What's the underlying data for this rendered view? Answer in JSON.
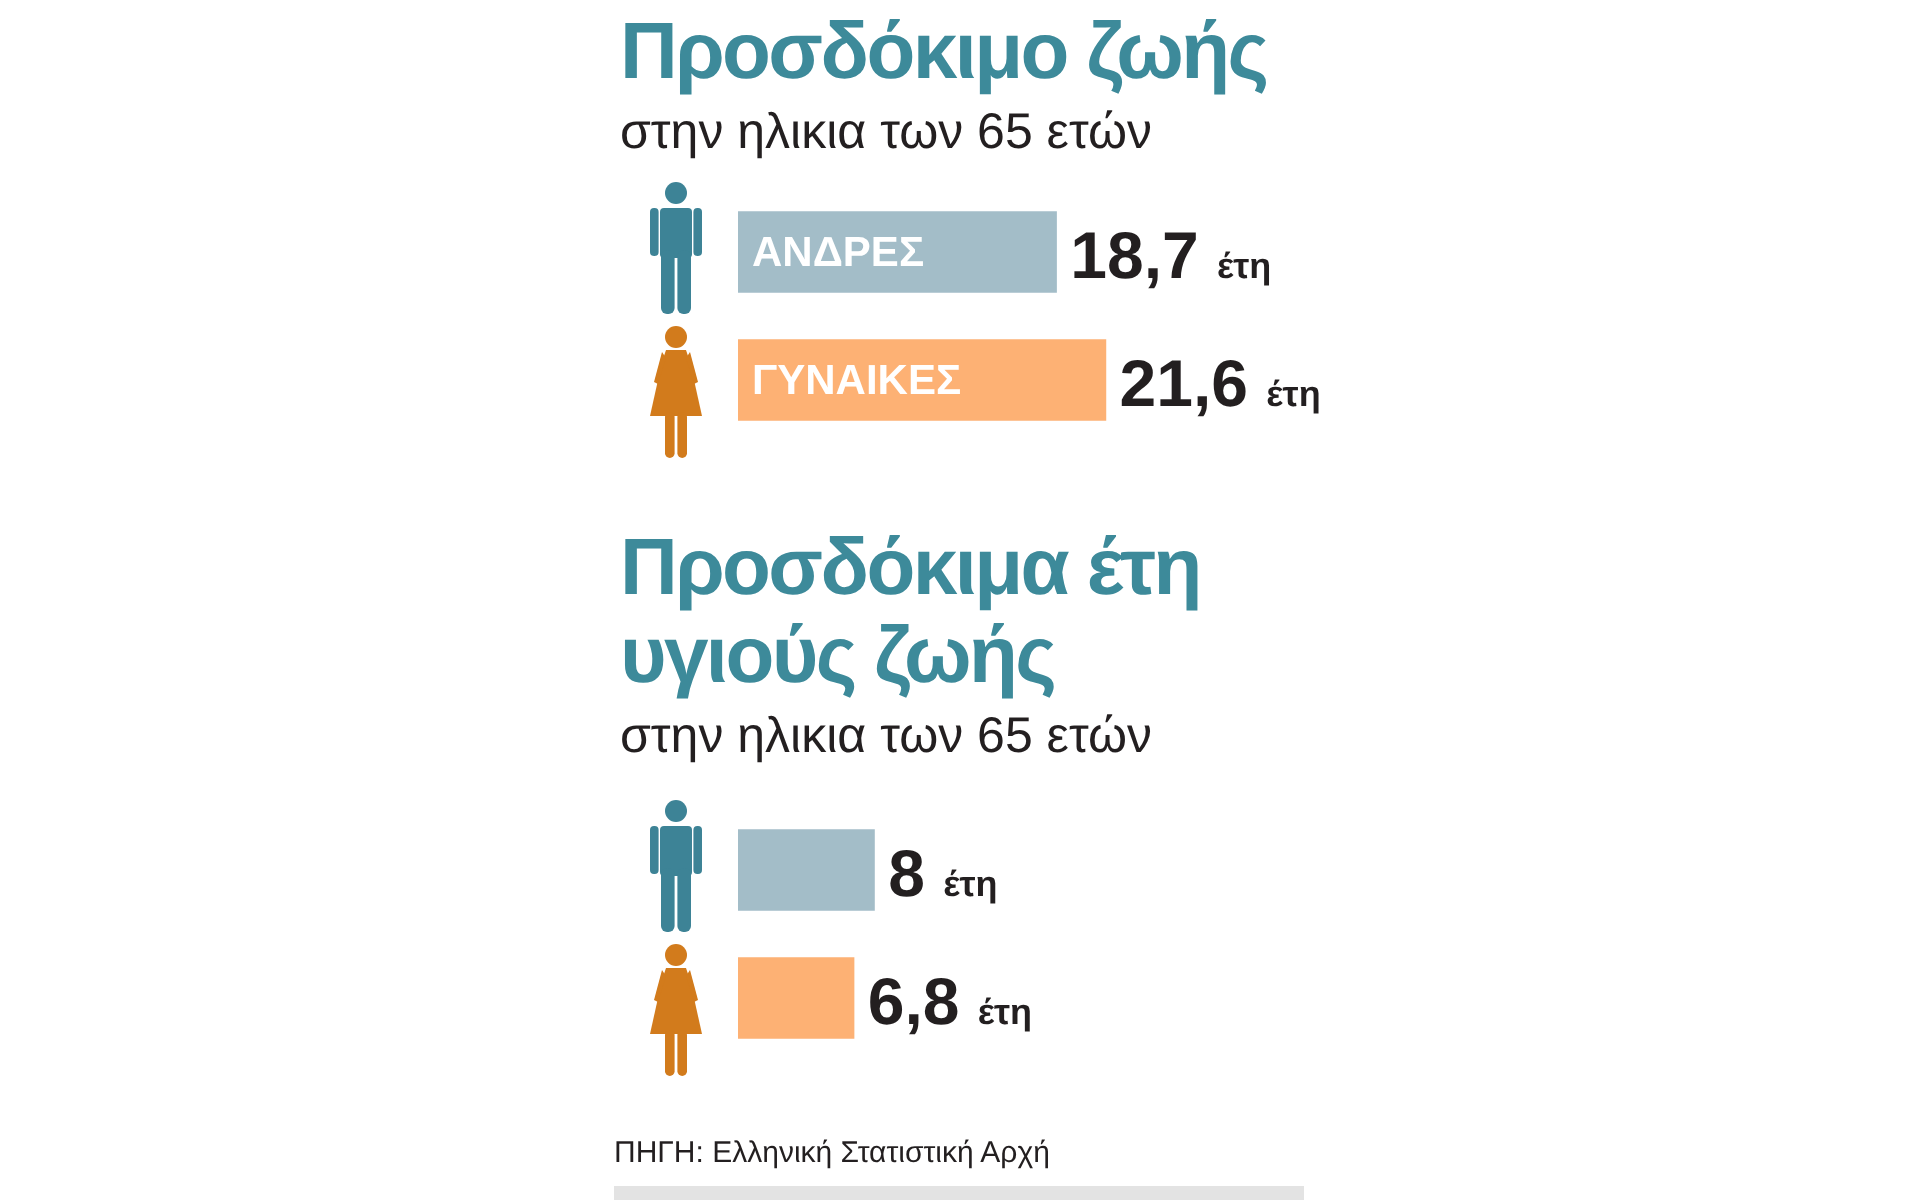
{
  "chart_data": [
    {
      "type": "bar",
      "orientation": "horizontal",
      "title": "Προσδόκιμο ζωής",
      "subtitle": "στην ηλικια των 65 ετών",
      "categories": [
        "ΑΝΔΡΕΣ",
        "ΓΥΝΑΙΚΕΣ"
      ],
      "values": [
        18.7,
        21.6
      ],
      "colors": [
        "#a3bdc8",
        "#fdb174"
      ],
      "value_labels": [
        "18,7 έτη",
        "21,6 έτη"
      ]
    },
    {
      "type": "bar",
      "orientation": "horizontal",
      "title": "Προσδόκιμα έτη υγιούς ζωής",
      "subtitle": "στην ηλικια των 65 ετών",
      "categories": [
        null,
        null
      ],
      "values": [
        8,
        6.8
      ],
      "colors": [
        "#a3bdc8",
        "#fdb174"
      ],
      "value_labels": [
        "8 έτη",
        "6,8 έτη"
      ],
      "annotations": [
        "ΠΗΓΗ: Ελληνική Στατιστική Αρχή"
      ]
    }
  ]
}
